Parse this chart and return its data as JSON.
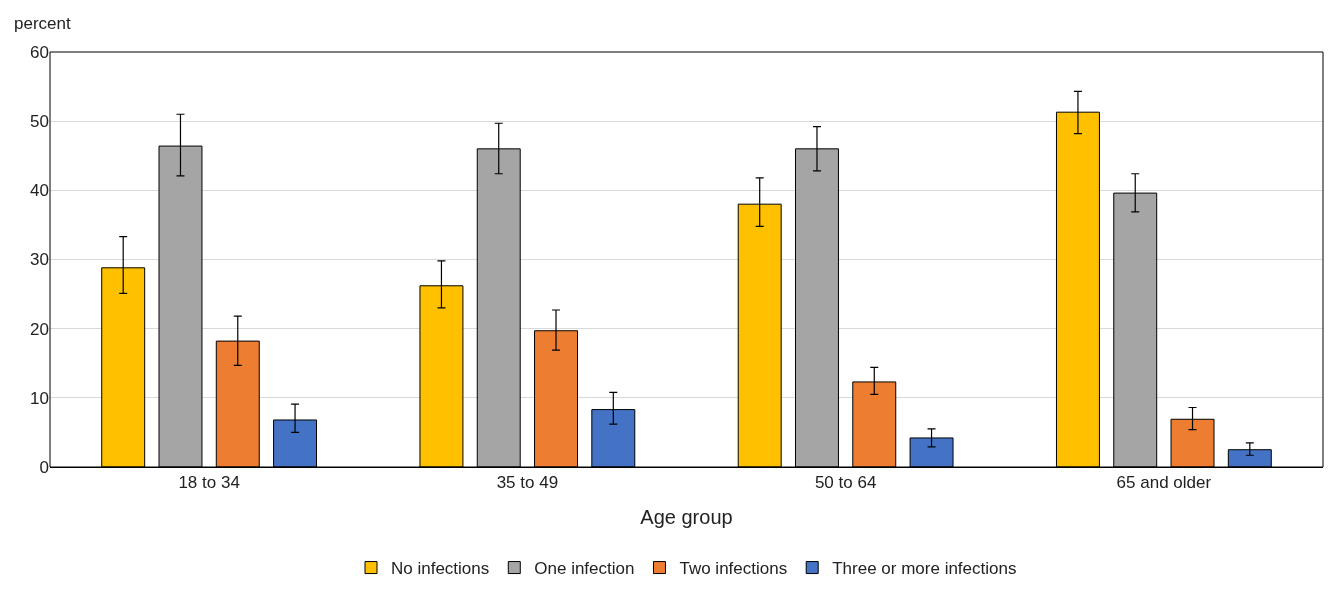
{
  "chart_data": {
    "type": "bar",
    "ylabel": "percent",
    "xlabel": "Age group",
    "categories": [
      "18 to 34",
      "35 to 49",
      "50 to 64",
      "65 and older"
    ],
    "series": [
      {
        "name": "No infections",
        "color": "#ffc000",
        "values": [
          28.8,
          26.2,
          38.0,
          51.3
        ],
        "errors": [
          [
            25.1,
            33.3
          ],
          [
            23.0,
            29.8
          ],
          [
            34.8,
            41.8
          ],
          [
            48.2,
            54.3
          ]
        ]
      },
      {
        "name": "One infection",
        "color": "#a5a5a5",
        "values": [
          46.4,
          46.0,
          46.0,
          39.6
        ],
        "errors": [
          [
            42.1,
            51.0
          ],
          [
            42.4,
            49.7
          ],
          [
            42.8,
            49.2
          ],
          [
            36.9,
            42.4
          ]
        ]
      },
      {
        "name": "Two infections",
        "color": "#ed7d31",
        "values": [
          18.2,
          19.7,
          12.3,
          6.9
        ],
        "errors": [
          [
            14.7,
            21.8
          ],
          [
            16.9,
            22.7
          ],
          [
            10.5,
            14.4
          ],
          [
            5.4,
            8.6
          ]
        ]
      },
      {
        "name": "Three or more infections",
        "color": "#4472c4",
        "values": [
          6.8,
          8.3,
          4.2,
          2.5
        ],
        "errors": [
          [
            5.0,
            9.1
          ],
          [
            6.2,
            10.8
          ],
          [
            2.9,
            5.5
          ],
          [
            1.7,
            3.5
          ]
        ]
      }
    ],
    "ylim": [
      0,
      60
    ],
    "yticks": [
      0,
      10,
      20,
      30,
      40,
      50,
      60
    ],
    "grid": "y",
    "legend": "bottom"
  }
}
